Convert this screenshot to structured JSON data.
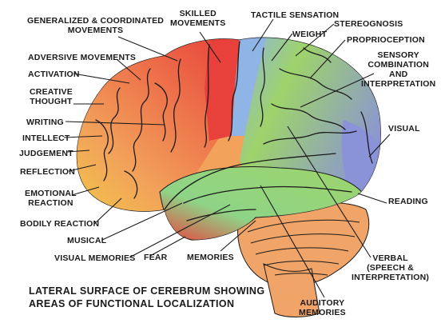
{
  "diagram": {
    "labels": {
      "generalized": "GENERALIZED & COORDINATED\nMOVEMENTS",
      "skilled": "SKILLED\nMOVEMENTS",
      "tactile": "TACTILE SENSATION",
      "stereognosis": "STEREOGNOSIS",
      "weight": "WEIGHT",
      "proprioception": "PROPRIOCEPTION",
      "sensory": "SENSORY\nCOMBINATION\nAND\nINTERPRETATION",
      "adversive": "ADVERSIVE MOVEMENTS",
      "activation": "ACTIVATION",
      "creative": "CREATIVE\nTHOUGHT",
      "writing": "WRITING",
      "intellect": "INTELLECT",
      "judgement": "JUDGEMENT",
      "reflection": "REFLECTION",
      "emotional": "EMOTIONAL\nREACTION",
      "bodily": "BODILY REACTION",
      "musical": "MUSICAL",
      "visual_memories": "VISUAL MEMORIES",
      "fear": "FEAR",
      "memories": "MEMORIES",
      "visual": "VISUAL",
      "reading": "READING",
      "verbal": "VERBAL\n(SPEECH &\nINTERPRETATION)",
      "auditory": "AUDITORY\nMEMORIES"
    },
    "caption": "LATERAL SURFACE OF CEREBRUM SHOWING\nAREAS OF FUNCTIONAL LOCALIZATION"
  },
  "colors": {
    "prefrontal_yellow": "#f2ea3a",
    "frontal_orange": "#f2a25a",
    "motor_red": "#e8403a",
    "sensory_blue": "#8fb4e6",
    "parietal_green": "#9ed36a",
    "occipital_blue": "#8a92d8",
    "temporal_green": "#8ed487",
    "temporal_red": "#e8443e",
    "cerebellum_orange": "#f0a468",
    "leader_lines": "#1a1a1a"
  }
}
